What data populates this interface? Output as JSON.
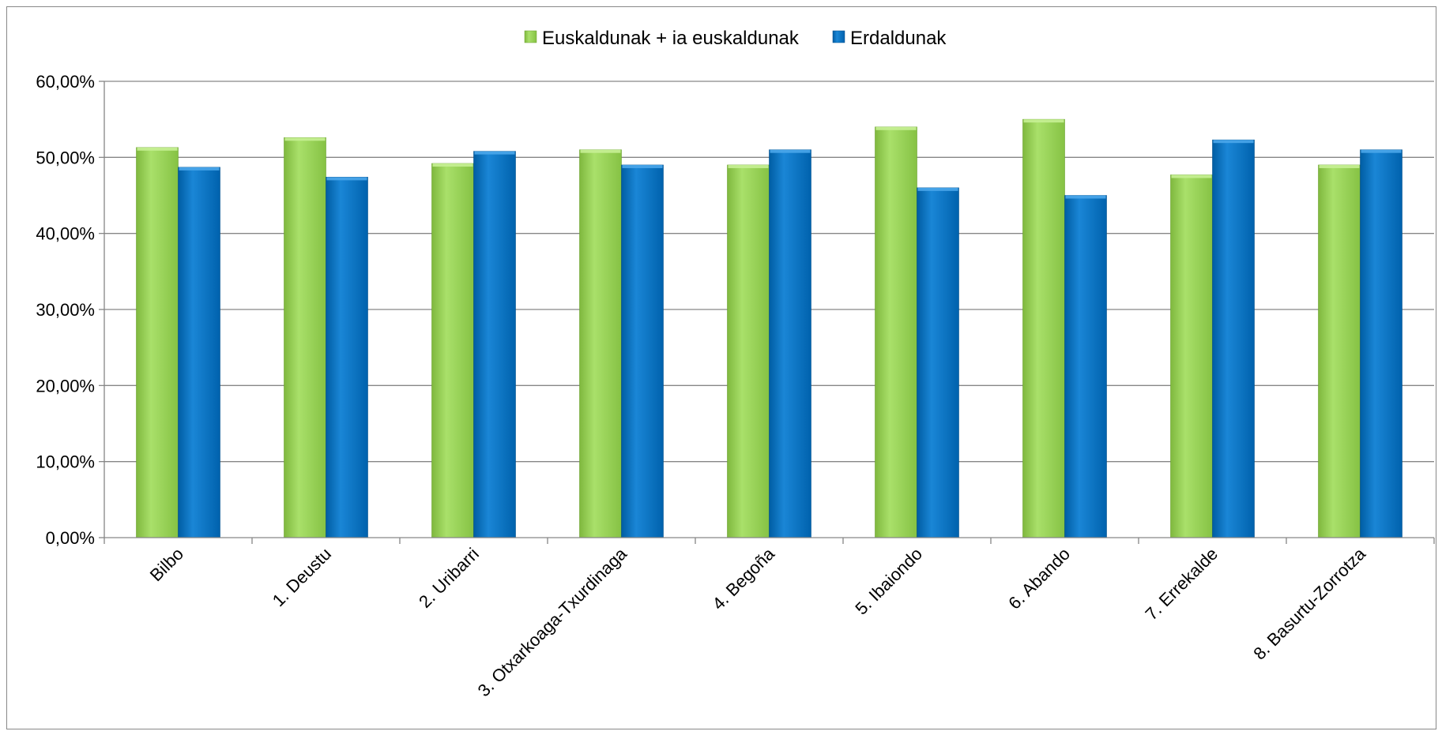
{
  "chart_data": {
    "type": "bar",
    "title": "",
    "xlabel": "",
    "ylabel": "",
    "categories": [
      "Bilbo",
      "1. Deustu",
      "2. Uribarri",
      "3. Otxarkoaga-Txurdinaga",
      "4. Begoña",
      "5. Ibaiondo",
      "6. Abando",
      "7. Errekalde",
      "8. Basurtu-Zorrotza"
    ],
    "series": [
      {
        "name": "Euskaldunak + ia euskaldunak",
        "color": "#92d050",
        "values": [
          51.3,
          52.6,
          49.2,
          51.0,
          49.0,
          54.0,
          55.0,
          47.7,
          49.0
        ]
      },
      {
        "name": "Erdaldunak",
        "color": "#0070c0",
        "values": [
          48.7,
          47.4,
          50.8,
          49.0,
          51.0,
          46.0,
          45.0,
          52.3,
          51.0
        ]
      }
    ],
    "yticks": [
      "0,00%",
      "10,00%",
      "20,00%",
      "30,00%",
      "40,00%",
      "50,00%",
      "60,00%"
    ],
    "ylim": [
      0,
      60
    ],
    "grid": true,
    "legend_position": "top-center"
  }
}
